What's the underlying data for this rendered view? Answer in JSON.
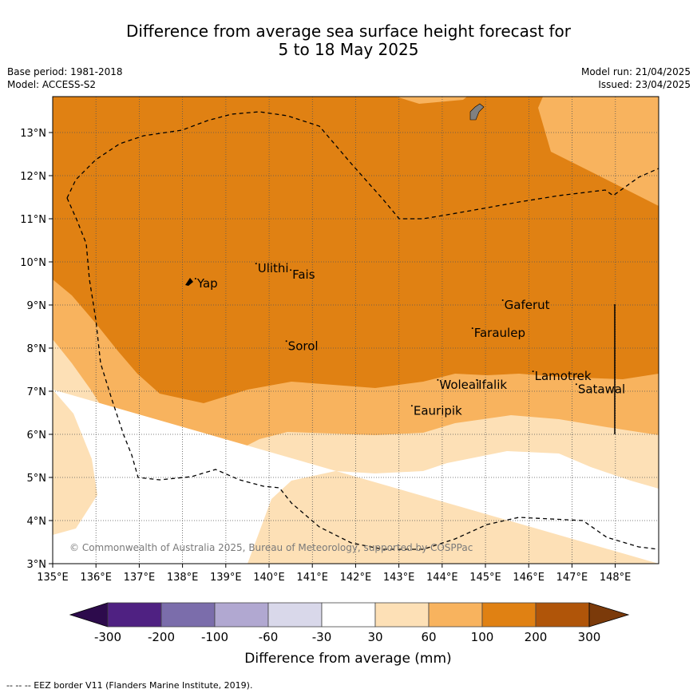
{
  "title_line1": "Difference from average sea surface height forecast for",
  "title_line2": "5 to 18 May 2025",
  "base_period": "Base period: 1981-2018",
  "model": "Model: ACCESS-S2",
  "model_run": "Model run: 21/04/2025",
  "issued": "Issued: 23/04/2025",
  "copyright": "© Commonwealth of Australia 2025, Bureau of Meteorology, supported by COSPPac",
  "eez_legend": "-- -- -- EEZ border V11 (Flanders Marine Institute, 2019).",
  "colorbar_label": "Difference from average (mm)",
  "lon_ticks": [
    "135°E",
    "136°E",
    "137°E",
    "138°E",
    "139°E",
    "140°E",
    "141°E",
    "142°E",
    "143°E",
    "144°E",
    "145°E",
    "146°E",
    "147°E",
    "148°E"
  ],
  "lat_ticks": [
    "3°N",
    "4°N",
    "5°N",
    "6°N",
    "7°N",
    "8°N",
    "9°N",
    "10°N",
    "11°N",
    "12°N",
    "13°N"
  ],
  "colorbar_ticks": [
    "-300",
    "-200",
    "-100",
    "-60",
    "-30",
    "30",
    "60",
    "100",
    "200",
    "300"
  ],
  "colorbar_colors": [
    "#4f2182",
    "#7b6dab",
    "#b1a8d1",
    "#d9d8ea",
    "#ffffff",
    "#fde0b6",
    "#f8b35e",
    "#e08113",
    "#b05509"
  ],
  "colorbar_under": "#2d0b4c",
  "colorbar_over": "#7b3a0a",
  "places": [
    {
      "name": "Yap",
      "lon": 138.3,
      "lat": 9.5
    },
    {
      "name": "Ulithi",
      "lon": 139.7,
      "lat": 9.85
    },
    {
      "name": "Fais",
      "lon": 140.5,
      "lat": 9.7
    },
    {
      "name": "Sorol",
      "lon": 140.4,
      "lat": 8.05
    },
    {
      "name": "Gaferut",
      "lon": 145.4,
      "lat": 9.0
    },
    {
      "name": "Faraulep",
      "lon": 144.7,
      "lat": 8.35
    },
    {
      "name": "Woleai",
      "lon": 143.9,
      "lat": 7.15
    },
    {
      "name": "Ifalik",
      "lon": 144.8,
      "lat": 7.15
    },
    {
      "name": "Lamotrek",
      "lon": 146.1,
      "lat": 7.35
    },
    {
      "name": "Satawal",
      "lon": 147.1,
      "lat": 7.05
    },
    {
      "name": "Eauripik",
      "lon": 143.3,
      "lat": 6.55
    }
  ]
}
